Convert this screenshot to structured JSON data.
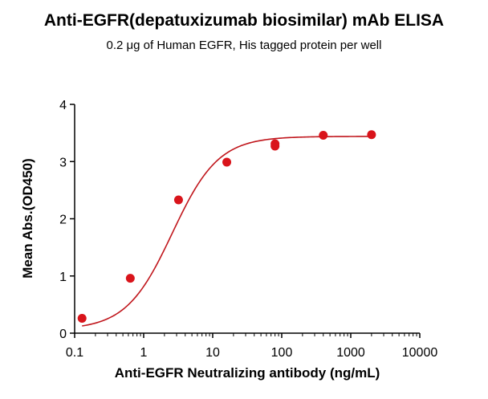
{
  "chart_data": {
    "type": "scatter",
    "title": "Anti-EGFR(depatuxizumab biosimilar) mAb ELISA",
    "subtitle": "0.2 μg of Human EGFR, His tagged protein per well",
    "xlabel": "Anti-EGFR Neutralizing antibody (ng/mL)",
    "ylabel": "Mean Abs.(OD450)",
    "xscale": "log",
    "xlim": [
      0.1,
      10000
    ],
    "ylim": [
      0,
      4
    ],
    "x_ticks": [
      "0.1",
      "1",
      "10",
      "100",
      "1000",
      "10000"
    ],
    "y_ticks": [
      "0",
      "1",
      "2",
      "3",
      "4"
    ],
    "grid": false,
    "legend": "none",
    "color": "#d9141b",
    "curve_color": "#c0161c",
    "series": [
      {
        "x": [
          0.128,
          0.64,
          3.2,
          16,
          80,
          80,
          400,
          2000
        ],
        "y": [
          0.26,
          0.96,
          2.33,
          2.99,
          3.31,
          3.27,
          3.46,
          3.47
        ]
      }
    ],
    "fit": {
      "model": "4PL",
      "bottom": 0.06,
      "top": 3.44,
      "ec50": 2.6,
      "hill": 1.3
    }
  }
}
